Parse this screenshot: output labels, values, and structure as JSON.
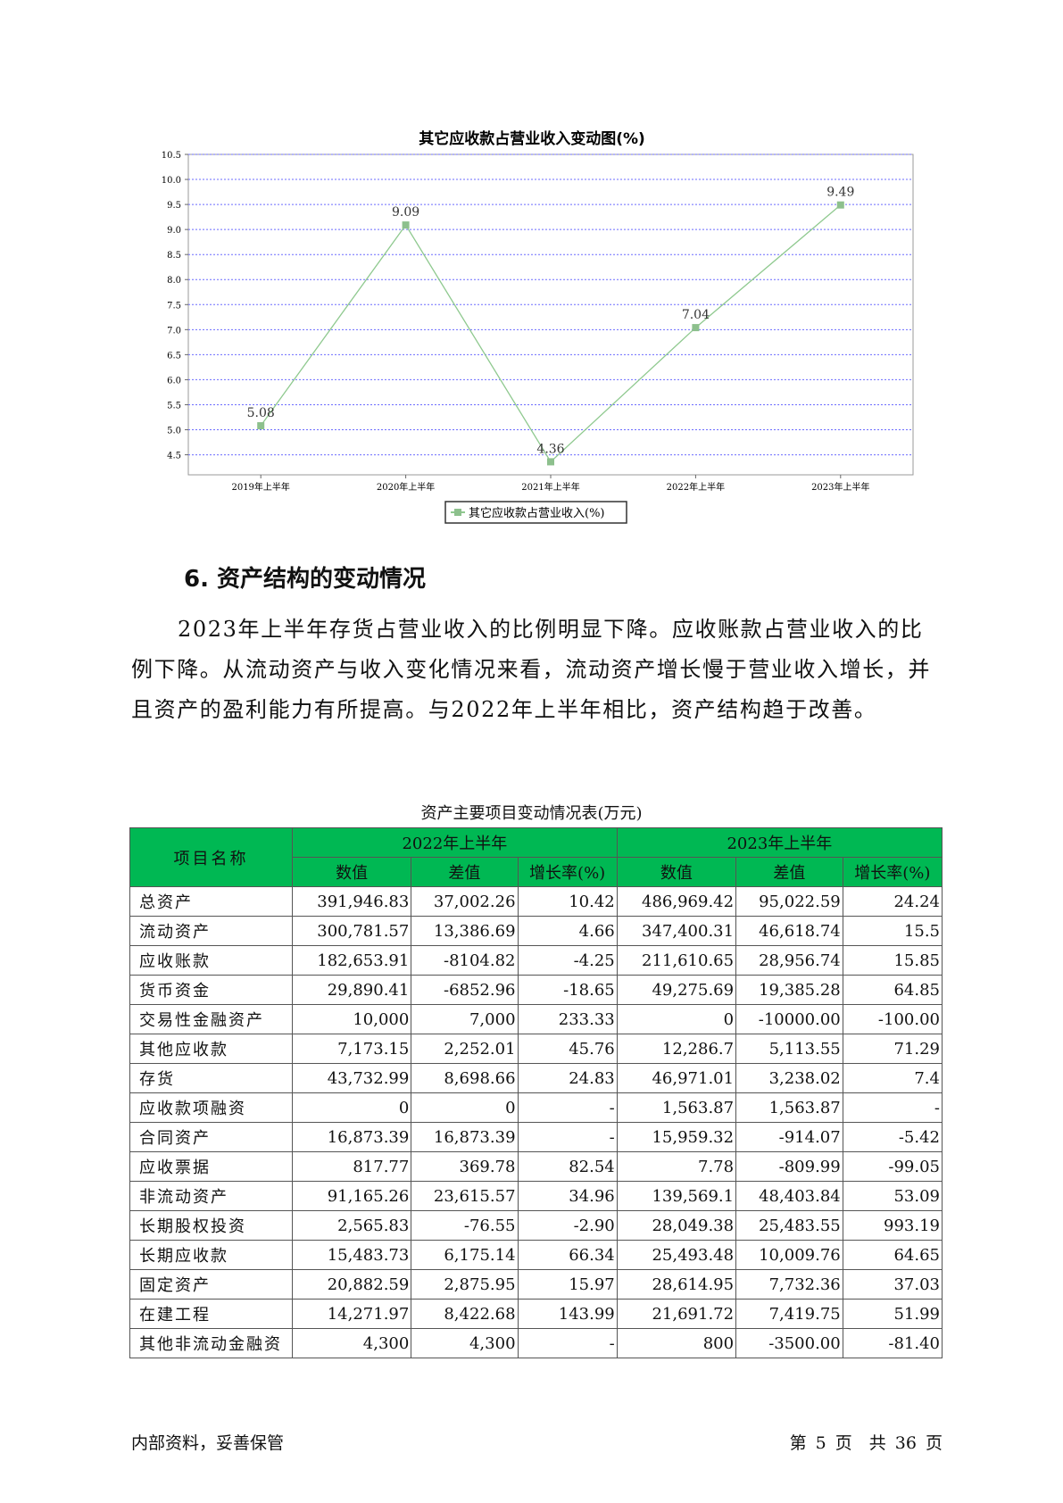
{
  "chart_data": {
    "type": "line",
    "title": "其它应收款占营业收入变动图(%)",
    "categories": [
      "2019年上半年",
      "2020年上半年",
      "2021年上半年",
      "2022年上半年",
      "2023年上半年"
    ],
    "series": [
      {
        "name": "其它应收款占营业收入(%)",
        "values": [
          5.08,
          9.09,
          4.36,
          7.04,
          9.49
        ]
      }
    ],
    "data_labels": [
      "5.08",
      "9.09",
      "4.36",
      "7.04",
      "9.49"
    ],
    "yticks": [
      "4.5",
      "5.0",
      "5.5",
      "6.0",
      "6.5",
      "7.0",
      "7.5",
      "8.0",
      "8.5",
      "9.0",
      "9.5",
      "10.0",
      "10.5"
    ],
    "ylim": [
      4.1,
      10.5
    ],
    "grid": true,
    "legend_position": "bottom",
    "colors": {
      "line": "#8fc98f",
      "marker": "#8dc08d",
      "grid": "#6b6bff"
    }
  },
  "section": {
    "heading": "6. 资产结构的变动情况",
    "paragraph": "2023年上半年存货占营业收入的比例明显下降。应收账款占营业收入的比例下降。从流动资产与收入变化情况来看，流动资产增长慢于营业收入增长，并且资产的盈利能力有所提高。与2022年上半年相比，资产结构趋于改善。"
  },
  "table": {
    "caption": "资产主要项目变动情况表(万元)",
    "header_name": "项目名称",
    "groups": [
      "2022年上半年",
      "2023年上半年"
    ],
    "subheaders": [
      "数值",
      "差值",
      "增长率(%)",
      "数值",
      "差值",
      "增长率(%)"
    ],
    "header_color": "#00b853",
    "rows": [
      [
        "总资产",
        "391,946.83",
        "37,002.26",
        "10.42",
        "486,969.42",
        "95,022.59",
        "24.24"
      ],
      [
        "流动资产",
        "300,781.57",
        "13,386.69",
        "4.66",
        "347,400.31",
        "46,618.74",
        "15.5"
      ],
      [
        "应收账款",
        "182,653.91",
        "-8104.82",
        "-4.25",
        "211,610.65",
        "28,956.74",
        "15.85"
      ],
      [
        "货币资金",
        "29,890.41",
        "-6852.96",
        "-18.65",
        "49,275.69",
        "19,385.28",
        "64.85"
      ],
      [
        "交易性金融资产",
        "10,000",
        "7,000",
        "233.33",
        "0",
        "-10000.00",
        "-100.00"
      ],
      [
        "其他应收款",
        "7,173.15",
        "2,252.01",
        "45.76",
        "12,286.7",
        "5,113.55",
        "71.29"
      ],
      [
        "存货",
        "43,732.99",
        "8,698.66",
        "24.83",
        "46,971.01",
        "3,238.02",
        "7.4"
      ],
      [
        "应收款项融资",
        "0",
        "0",
        "-",
        "1,563.87",
        "1,563.87",
        "-"
      ],
      [
        "合同资产",
        "16,873.39",
        "16,873.39",
        "-",
        "15,959.32",
        "-914.07",
        "-5.42"
      ],
      [
        "应收票据",
        "817.77",
        "369.78",
        "82.54",
        "7.78",
        "-809.99",
        "-99.05"
      ],
      [
        "非流动资产",
        "91,165.26",
        "23,615.57",
        "34.96",
        "139,569.1",
        "48,403.84",
        "53.09"
      ],
      [
        "长期股权投资",
        "2,565.83",
        "-76.55",
        "-2.90",
        "28,049.38",
        "25,483.55",
        "993.19"
      ],
      [
        "长期应收款",
        "15,483.73",
        "6,175.14",
        "66.34",
        "25,493.48",
        "10,009.76",
        "64.65"
      ],
      [
        "固定资产",
        "20,882.59",
        "2,875.95",
        "15.97",
        "28,614.95",
        "7,732.36",
        "37.03"
      ],
      [
        "在建工程",
        "14,271.97",
        "8,422.68",
        "143.99",
        "21,691.72",
        "7,419.75",
        "51.99"
      ],
      [
        "其他非流动金融资",
        "4,300",
        "4,300",
        "-",
        "800",
        "-3500.00",
        "-81.40"
      ]
    ]
  },
  "footer": {
    "left": "内部资料，妥善保管",
    "page": "第 5 页　共 36 页"
  }
}
